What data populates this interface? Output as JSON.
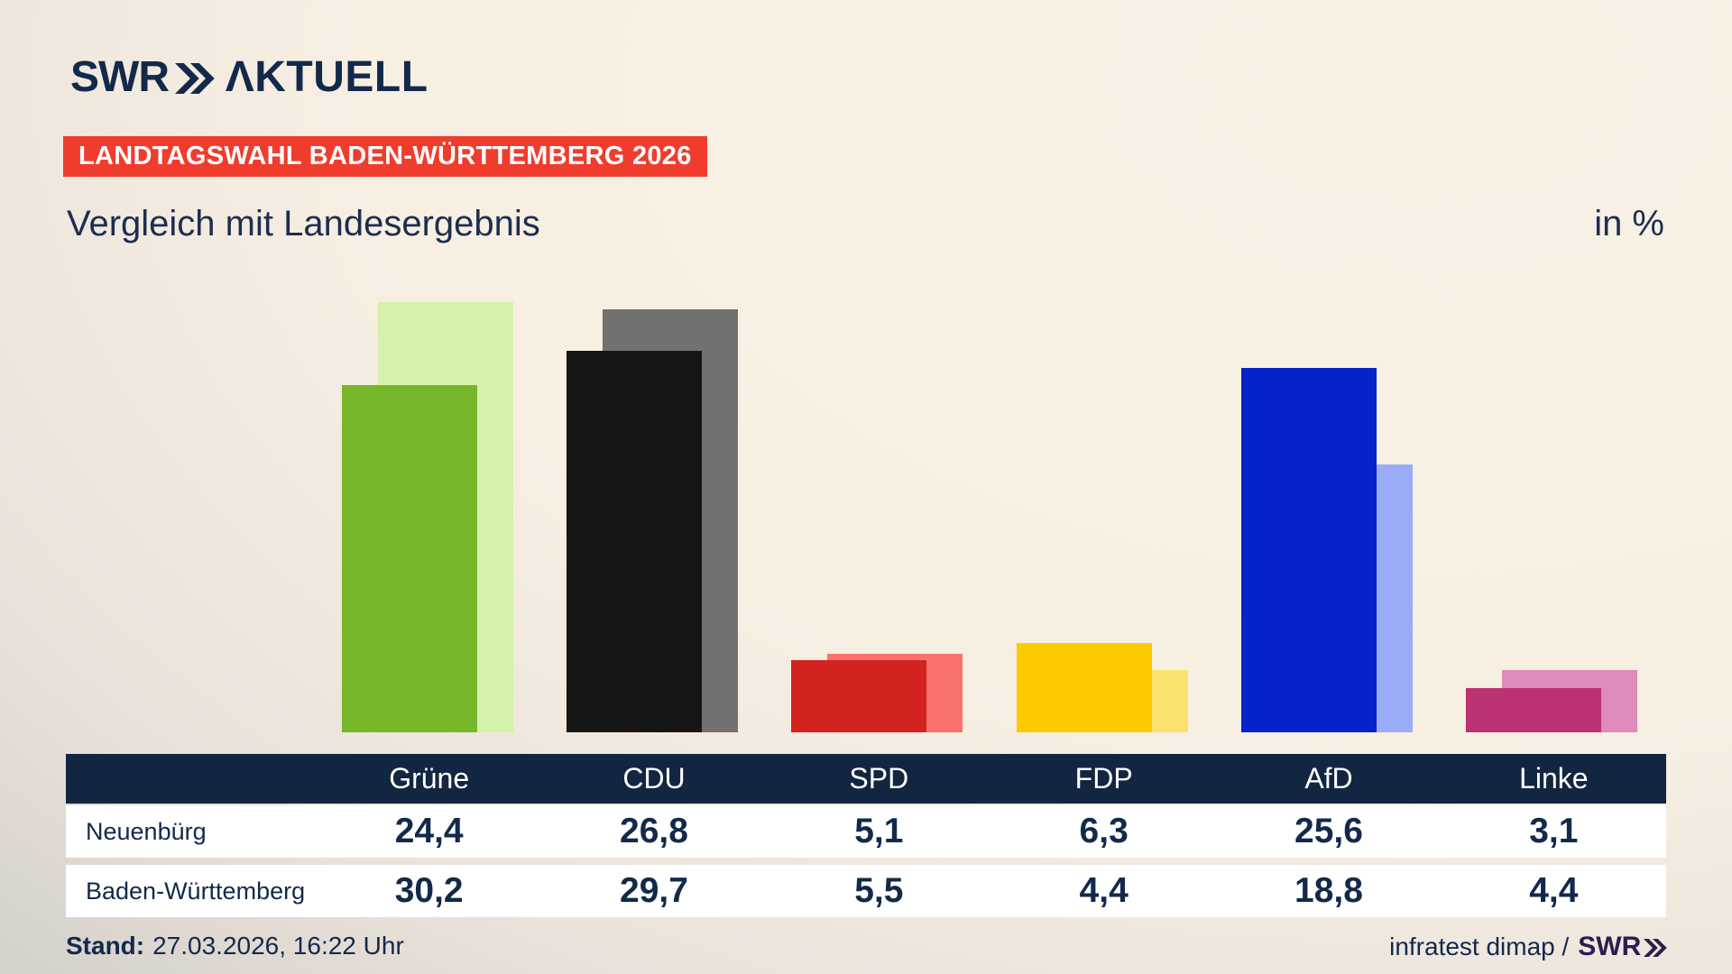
{
  "colors": {
    "brand_navy": "#13294b",
    "badge_red": "#f03c2d",
    "table_header_bg": "#132641",
    "row_bg": "#ffffff",
    "footer_brand_purple": "#2e1c4e",
    "background_cream": "#f8f0e3",
    "background_grey": "#c9c6c1"
  },
  "header": {
    "logo_swr": "SWR",
    "logo_aktuell": "ΛKTUELL",
    "badge": "LANDTAGSWAHL BADEN-WÜRTTEMBERG 2026",
    "title": "Vergleich mit Landesergebnis",
    "unit": "in %"
  },
  "chart_data": {
    "type": "bar",
    "title": "Vergleich mit Landesergebnis",
    "unit_label": "in %",
    "categories": [
      "Grüne",
      "CDU",
      "SPD",
      "FDP",
      "AfD",
      "Linke"
    ],
    "series": [
      {
        "name": "Neuenbürg",
        "role": "foreground",
        "values": [
          24.4,
          26.8,
          5.1,
          6.3,
          25.6,
          3.1
        ],
        "colors": [
          "#76b72a",
          "#161614",
          "#d22321",
          "#fdca00",
          "#0522cc",
          "#bb3273"
        ]
      },
      {
        "name": "Baden-Württemberg",
        "role": "background",
        "values": [
          30.2,
          29.7,
          5.5,
          4.4,
          18.8,
          4.4
        ],
        "colors": [
          "#d5f1ab",
          "#737170",
          "#f9716a",
          "#fbe170",
          "#9aabf7",
          "#de8aba"
        ]
      }
    ],
    "ylim": [
      0,
      30.2
    ],
    "grid": false,
    "legend_position": "table-below",
    "value_format": "decimal-comma"
  },
  "table": {
    "columns": [
      "Grüne",
      "CDU",
      "SPD",
      "FDP",
      "AfD",
      "Linke"
    ],
    "rows": [
      {
        "label": "Neuenbürg",
        "values": [
          "24,4",
          "26,8",
          "5,1",
          "6,3",
          "25,6",
          "3,1"
        ]
      },
      {
        "label": "Baden-Württemberg",
        "values": [
          "30,2",
          "29,7",
          "5,5",
          "4,4",
          "18,8",
          "4,4"
        ]
      }
    ]
  },
  "footer": {
    "stand_label": "Stand:",
    "stand_value": "27.03.2026, 16:22 Uhr",
    "source_text": "infratest dimap /",
    "source_brand": "SWR"
  }
}
